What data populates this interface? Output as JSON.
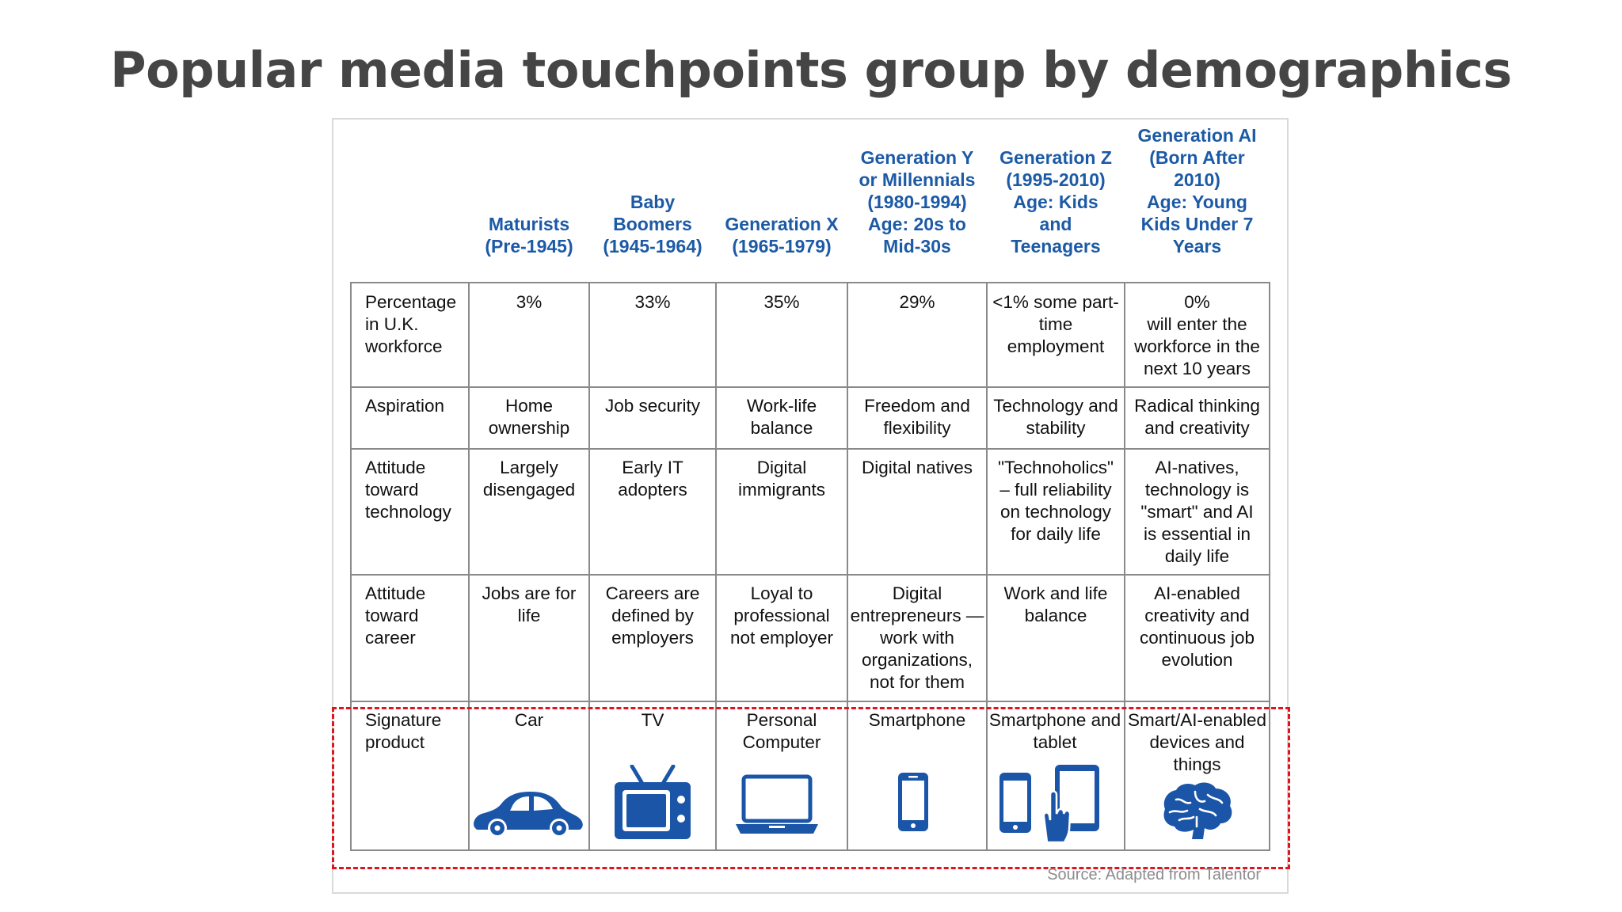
{
  "title": "Popular media touchpoints group by demographics",
  "columns": [
    "Maturists\n(Pre-1945)",
    "Baby\nBoomers\n(1945-1964)",
    "Generation X\n(1965-1979)",
    "Generation Y\nor Millennials\n(1980-1994)\nAge: 20s to\nMid-30s",
    "Generation Z\n(1995-2010)\nAge: Kids\nand\nTeenagers",
    "Generation AI\n(Born After\n2010)\nAge: Young\nKids Under 7\nYears"
  ],
  "rows": [
    {
      "label": "Percentage\nin U.K.\nworkforce",
      "cells": [
        "3%",
        "33%",
        "35%",
        "29%",
        "<1% some part-\ntime\nemployment",
        "0%\nwill enter the\nworkforce in the\nnext 10 years"
      ]
    },
    {
      "label": "Aspiration",
      "cells": [
        "Home\nownership",
        "Job security",
        "Work-life\nbalance",
        "Freedom and\nflexibility",
        "Technology and\nstability",
        "Radical thinking\nand creativity"
      ]
    },
    {
      "label": "Attitude\ntoward\ntechnology",
      "cells": [
        "Largely\ndisengaged",
        "Early IT\nadopters",
        "Digital\nimmigrants",
        "Digital natives",
        "\"Technoholics\"\n– full reliability\non technology\nfor daily life",
        "AI-natives,\ntechnology is\n\"smart\" and AI\nis essential in\ndaily life"
      ]
    },
    {
      "label": "Attitude\ntoward\ncareer",
      "cells": [
        "Jobs are for\nlife",
        "Careers are\ndefined by\nemployers",
        "Loyal to\nprofessional\nnot employer",
        "Digital\nentrepreneurs —\nwork with\norganizations,\nnot for them",
        "Work and life\nbalance",
        "AI-enabled\ncreativity and\ncontinuous job\nevolution"
      ]
    },
    {
      "label": "Signature\nproduct",
      "cells": [
        "Car",
        "TV",
        "Personal\nComputer",
        "Smartphone",
        "Smartphone and\ntablet",
        "Smart/AI-enabled\ndevices and\nthings"
      ]
    }
  ],
  "product_icons": [
    "car-icon",
    "tv-icon",
    "laptop-icon",
    "smartphone-icon",
    "smartphone-tablet-icon",
    "brain-icon"
  ],
  "source": "Source: Adapted from Talentor",
  "colors": {
    "header_blue": "#1c5aa6",
    "icon_blue": "#1a55a8",
    "highlight_red": "#e0141e",
    "title_gray": "#454545"
  }
}
